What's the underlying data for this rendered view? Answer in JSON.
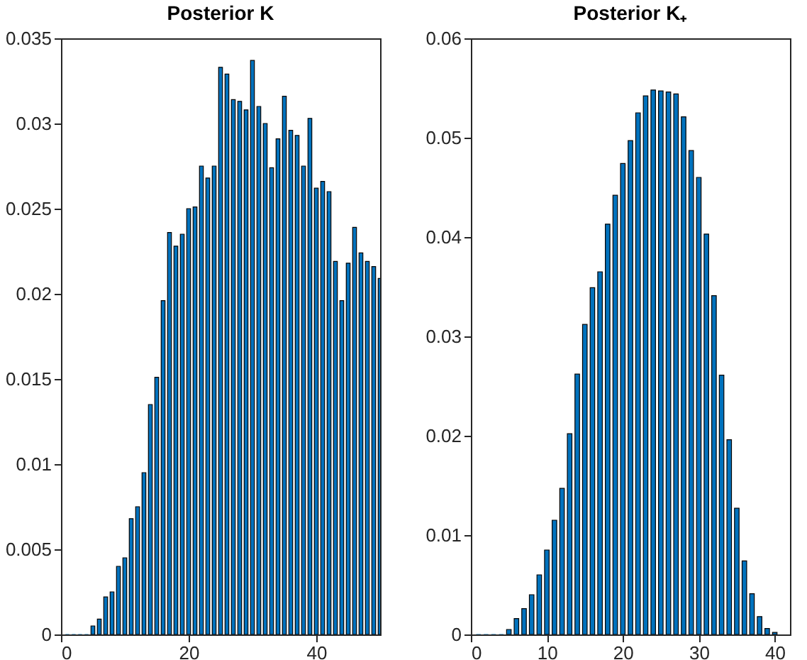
{
  "chart_data": [
    {
      "type": "bar",
      "title": "Posterior K",
      "color": "#0072bd",
      "grid": false,
      "x": [
        1,
        2,
        3,
        4,
        5,
        6,
        7,
        8,
        9,
        10,
        11,
        12,
        13,
        14,
        15,
        16,
        17,
        18,
        19,
        20,
        21,
        22,
        23,
        24,
        25,
        26,
        27,
        28,
        29,
        30,
        31,
        32,
        33,
        34,
        35,
        36,
        37,
        38,
        39,
        40,
        41,
        42,
        43,
        44,
        45,
        46,
        47,
        48,
        49,
        50
      ],
      "values": [
        0,
        0,
        0,
        0,
        0.0005,
        0.0009,
        0.0022,
        0.0025,
        0.004,
        0.0045,
        0.0068,
        0.0075,
        0.0095,
        0.0135,
        0.0151,
        0.0196,
        0.0236,
        0.0228,
        0.0235,
        0.025,
        0.0251,
        0.0275,
        0.0268,
        0.0275,
        0.0333,
        0.0329,
        0.0314,
        0.0313,
        0.0308,
        0.0337,
        0.031,
        0.03,
        0.0274,
        0.0291,
        0.0316,
        0.0296,
        0.0293,
        0.0275,
        0.0303,
        0.0262,
        0.0266,
        0.026,
        0.0219,
        0.0196,
        0.0218,
        0.0239,
        0.0224,
        0.0219,
        0.0216,
        0.0209
      ],
      "xlim": [
        0,
        50
      ],
      "xticks": [
        0,
        20,
        40
      ],
      "ylim": [
        0,
        0.035
      ],
      "yticks": [
        0,
        0.005,
        0.01,
        0.015,
        0.02,
        0.025,
        0.03,
        0.035
      ]
    },
    {
      "type": "bar",
      "title": "Posterior K₊",
      "color": "#0072bd",
      "grid": false,
      "x": [
        1,
        2,
        3,
        4,
        5,
        6,
        7,
        8,
        9,
        10,
        11,
        12,
        13,
        14,
        15,
        16,
        17,
        18,
        19,
        20,
        21,
        22,
        23,
        24,
        25,
        26,
        27,
        28,
        29,
        30,
        31,
        32,
        33,
        34,
        35,
        36,
        37,
        38,
        39,
        40
      ],
      "values": [
        0,
        0,
        0,
        0,
        0.0005,
        0.0016,
        0.0026,
        0.004,
        0.006,
        0.0085,
        0.0115,
        0.0147,
        0.0202,
        0.0262,
        0.0312,
        0.0349,
        0.0365,
        0.0413,
        0.0442,
        0.0474,
        0.0497,
        0.0525,
        0.0542,
        0.0548,
        0.0547,
        0.0546,
        0.0544,
        0.0521,
        0.0487,
        0.046,
        0.0403,
        0.0341,
        0.0261,
        0.0196,
        0.0127,
        0.0074,
        0.0041,
        0.0018,
        0.0006,
        0.0002
      ],
      "xlim": [
        0,
        42
      ],
      "xticks": [
        0,
        10,
        20,
        30,
        40
      ],
      "ylim": [
        0,
        0.06
      ],
      "yticks": [
        0,
        0.01,
        0.02,
        0.03,
        0.04,
        0.05,
        0.06
      ]
    }
  ]
}
